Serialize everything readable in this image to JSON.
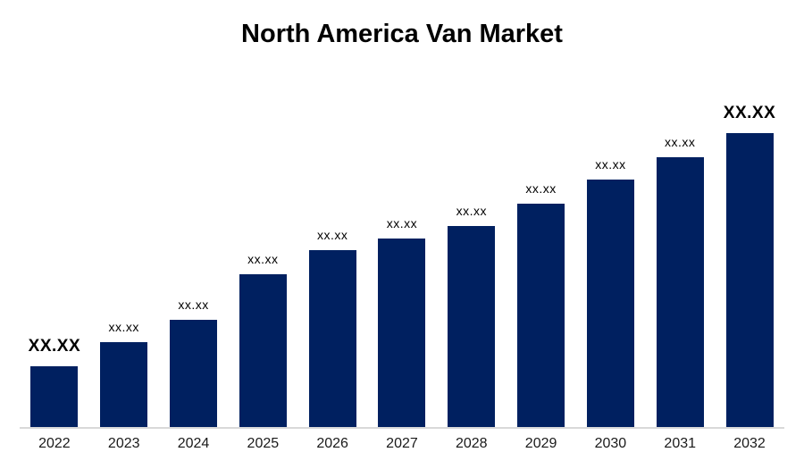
{
  "chart_data": {
    "type": "bar",
    "title": "North America Van Market",
    "categories": [
      "2022",
      "2023",
      "2024",
      "2025",
      "2026",
      "2027",
      "2028",
      "2029",
      "2030",
      "2031",
      "2032"
    ],
    "data_labels": [
      "XX.XX",
      "xx.xx",
      "xx.xx",
      "xx.xx",
      "xx.xx",
      "xx.xx",
      "xx.xx",
      "xx.xx",
      "xx.xx",
      "xx.xx",
      "XX.XX"
    ],
    "values_masked": true,
    "bar_heights_relative": [
      68,
      95,
      120,
      171,
      198,
      211,
      225,
      250,
      277,
      302,
      329
    ],
    "emphasized_indices": [
      0,
      10
    ],
    "bar_color": "#002060",
    "axis_line_color": "#d9d9d9",
    "background_color": "#ffffff",
    "xlabel": "",
    "ylabel": "",
    "y_axis_visible": false,
    "grid": false,
    "legend": "none"
  }
}
